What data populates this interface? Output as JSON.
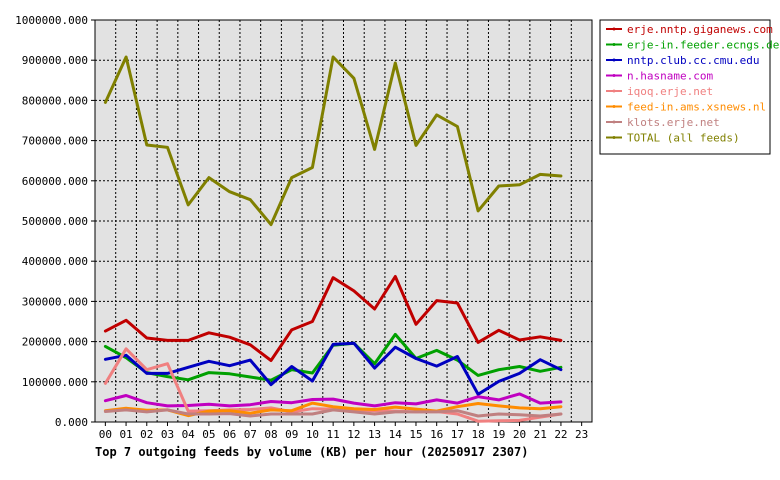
{
  "chart_data": {
    "type": "line",
    "title": "Top 7 outgoing feeds by volume (KB) per hour (20250917 2307)",
    "xlabel": "",
    "ylabel": "",
    "grid": true,
    "legend_placement": "top-right",
    "ylim": [
      0,
      1000000
    ],
    "y_ticks": [
      "0.000",
      "100000.000",
      "200000.000",
      "300000.000",
      "400000.000",
      "500000.000",
      "600000.000",
      "700000.000",
      "800000.000",
      "900000.000",
      "1000000.000"
    ],
    "x_ticks": [
      "00",
      "01",
      "02",
      "03",
      "04",
      "05",
      "06",
      "07",
      "08",
      "09",
      "10",
      "11",
      "12",
      "13",
      "14",
      "15",
      "16",
      "17",
      "18",
      "19",
      "20",
      "21",
      "22",
      "23"
    ],
    "series": [
      {
        "name": "erje.nntp.giganews.com",
        "color": "#c00000",
        "values": [
          226000,
          253000,
          209000,
          203000,
          203000,
          222000,
          211000,
          192000,
          153000,
          229000,
          250000,
          359000,
          326000,
          281000,
          362000,
          243000,
          302000,
          296000,
          198000,
          228000,
          204000,
          212000,
          203000
        ]
      },
      {
        "name": "erje-in.feeder.ecngs.de",
        "color": "#00a000",
        "values": [
          188000,
          160000,
          123000,
          113000,
          105000,
          123000,
          120000,
          112000,
          104000,
          130000,
          122000,
          191000,
          196000,
          145000,
          218000,
          158000,
          178000,
          154000,
          116000,
          130000,
          138000,
          126000,
          136000
        ]
      },
      {
        "name": "nntp.club.cc.cmu.edu",
        "color": "#0000c0",
        "values": [
          156000,
          166000,
          121000,
          121000,
          136000,
          151000,
          140000,
          154000,
          93000,
          138000,
          102000,
          193000,
          196000,
          134000,
          186000,
          158000,
          139000,
          163000,
          69000,
          101000,
          121000,
          155000,
          130000
        ]
      },
      {
        "name": "n.hasname.com",
        "color": "#c000c0",
        "values": [
          53000,
          66000,
          48000,
          40000,
          41000,
          44000,
          40000,
          43000,
          51000,
          48000,
          56000,
          57000,
          47000,
          40000,
          48000,
          45000,
          55000,
          47000,
          63000,
          55000,
          70000,
          47000,
          50000
        ]
      },
      {
        "name": "iqoq.erje.net",
        "color": "#f08080",
        "values": [
          96000,
          182000,
          130000,
          145000,
          27000,
          28000,
          30000,
          31000,
          35000,
          25000,
          33000,
          32000,
          30000,
          28000,
          27000,
          25000,
          26000,
          20000,
          2000,
          3000,
          4000,
          12000,
          20000
        ]
      },
      {
        "name": "feed-in.ams.xsnews.nl",
        "color": "#ff8c00",
        "values": [
          28000,
          34000,
          29000,
          30000,
          16000,
          27000,
          28000,
          22000,
          30000,
          28000,
          47000,
          38000,
          33000,
          31000,
          37000,
          32000,
          27000,
          38000,
          46000,
          40000,
          35000,
          33000,
          38000
        ]
      },
      {
        "name": "klots.erje.net",
        "color": "#c08080",
        "values": [
          26000,
          30000,
          25000,
          30000,
          20000,
          20000,
          21000,
          15000,
          20000,
          20000,
          20000,
          30000,
          25000,
          20000,
          25000,
          25000,
          25000,
          28000,
          15000,
          20000,
          18000,
          15000,
          20000
        ]
      },
      {
        "name": "TOTAL (all feeds)",
        "color": "#808000",
        "values": [
          795000,
          908000,
          689000,
          683000,
          540000,
          608000,
          573000,
          553000,
          491000,
          608000,
          633000,
          908000,
          855000,
          678000,
          893000,
          688000,
          764000,
          735000,
          525000,
          587000,
          590000,
          616000,
          612000
        ]
      }
    ]
  }
}
